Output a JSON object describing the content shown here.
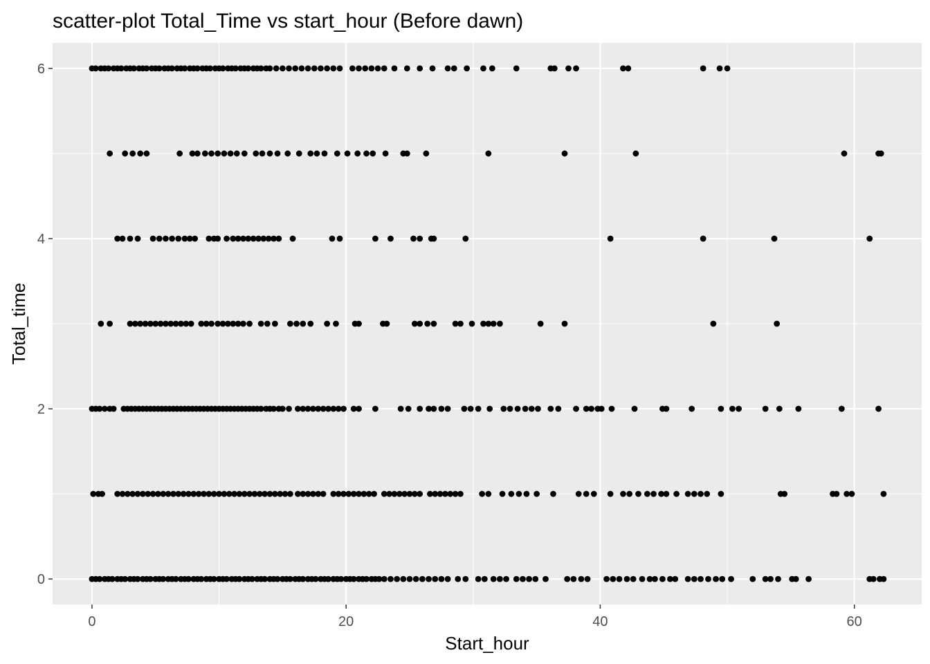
{
  "chart_data": {
    "type": "scatter",
    "title": "scatter-plot Total_Time vs start_hour (Before dawn)",
    "xlabel": "Start_hour",
    "ylabel": "Total_time",
    "xlim": [
      -3.1,
      65.3
    ],
    "ylim": [
      -0.3,
      6.3
    ],
    "x_ticks": [
      0,
      20,
      40,
      60
    ],
    "x_tick_labels": [
      "0",
      "20",
      "40",
      "60"
    ],
    "y_ticks": [
      0,
      2,
      4,
      6
    ],
    "y_tick_labels": [
      "0",
      "2",
      "4",
      "6"
    ],
    "grid": true,
    "legend": "none",
    "colors": {
      "panel": "#ebebeb",
      "grid": "#ffffff",
      "point": "#000000",
      "tick": "#333333"
    },
    "series": [
      {
        "values": [
          {
            "y": 6,
            "x": [
              0.0,
              0.3,
              0.7,
              1.0,
              1.3,
              1.7,
              2.0,
              2.3,
              2.7,
              3.0,
              3.3,
              3.7,
              4.0,
              4.3,
              4.7,
              5.0,
              5.3,
              5.7,
              6.0,
              6.3,
              6.7,
              7.0,
              7.3,
              7.7,
              8.0,
              8.3,
              8.7,
              9.0,
              9.3,
              9.7,
              10.0,
              10.3,
              10.7,
              11.0,
              11.3,
              11.7,
              12.0,
              12.3,
              12.7,
              13.0,
              13.3,
              13.7,
              14.0,
              14.5,
              15.0,
              15.5,
              16.0,
              16.5,
              17.0,
              17.5,
              18.0,
              18.5,
              19.0,
              19.5,
              20.5,
              21.0,
              21.5,
              22.0,
              22.5,
              23.0,
              23.8,
              24.8,
              25.8,
              26.8,
              28.0,
              28.5,
              29.5,
              30.8,
              31.5,
              33.4,
              36.1,
              36.4,
              37.5,
              38.1,
              41.8,
              42.2,
              48.1,
              49.4,
              50.0
            ]
          },
          {
            "y": 5,
            "x": [
              1.4,
              2.6,
              3.2,
              3.8,
              4.3,
              6.9,
              7.9,
              8.3,
              8.9,
              9.4,
              9.9,
              10.4,
              10.9,
              11.4,
              12.0,
              12.9,
              13.4,
              14.0,
              14.6,
              15.4,
              16.3,
              17.2,
              17.7,
              18.3,
              19.3,
              20.1,
              20.9,
              21.6,
              22.1,
              23.1,
              24.5,
              24.8,
              26.3,
              31.2,
              37.2,
              42.8,
              59.2,
              61.9,
              62.1
            ]
          },
          {
            "y": 4,
            "x": [
              2.0,
              2.4,
              3.0,
              3.6,
              4.8,
              5.3,
              5.8,
              6.3,
              6.8,
              7.3,
              7.7,
              8.1,
              9.2,
              9.6,
              9.9,
              10.6,
              11.1,
              11.5,
              11.9,
              12.3,
              12.7,
              13.1,
              13.5,
              13.9,
              14.3,
              14.7,
              15.8,
              18.9,
              19.5,
              22.3,
              23.5,
              25.3,
              25.8,
              26.7,
              26.9,
              29.4,
              40.8,
              48.1,
              53.7,
              61.2
            ]
          },
          {
            "y": 3,
            "x": [
              0.7,
              1.4,
              3.0,
              3.4,
              3.8,
              4.2,
              4.6,
              5.0,
              5.4,
              5.8,
              6.2,
              6.6,
              7.0,
              7.4,
              7.8,
              8.6,
              9.0,
              9.4,
              9.9,
              10.3,
              10.7,
              11.1,
              11.5,
              11.9,
              12.4,
              13.3,
              13.8,
              14.4,
              15.6,
              16.1,
              16.6,
              17.2,
              18.5,
              19.2,
              20.7,
              21.0,
              22.9,
              23.2,
              25.4,
              25.8,
              26.4,
              26.9,
              28.6,
              29.0,
              29.9,
              30.8,
              31.2,
              31.6,
              32.1,
              35.3,
              37.2,
              48.9,
              53.9
            ]
          },
          {
            "y": 2,
            "x": [
              0.0,
              0.3,
              0.6,
              1.0,
              1.4,
              1.7,
              2.5,
              2.8,
              3.1,
              3.4,
              3.7,
              4.0,
              4.3,
              4.6,
              4.9,
              5.2,
              5.5,
              5.8,
              6.1,
              6.4,
              6.7,
              7.0,
              7.3,
              7.6,
              7.9,
              8.2,
              8.5,
              8.8,
              9.1,
              9.4,
              9.7,
              10.0,
              10.3,
              10.6,
              10.9,
              11.2,
              11.5,
              11.8,
              12.1,
              12.4,
              12.7,
              13.0,
              13.3,
              13.7,
              14.0,
              14.3,
              14.7,
              15.0,
              15.5,
              16.2,
              16.6,
              17.0,
              17.4,
              17.8,
              18.2,
              18.6,
              19.0,
              19.4,
              19.8,
              20.6,
              21.0,
              22.3,
              24.3,
              24.9,
              25.8,
              26.5,
              26.9,
              27.5,
              28.0,
              29.3,
              29.8,
              30.4,
              31.3,
              32.4,
              32.9,
              33.5,
              34.1,
              34.6,
              35.1,
              36.1,
              36.7,
              38.1,
              38.9,
              39.3,
              39.8,
              40.1,
              40.9,
              42.7,
              44.9,
              45.2,
              47.2,
              49.5,
              50.4,
              50.9,
              53.0,
              54.1,
              55.6,
              59.0,
              61.9
            ]
          },
          {
            "y": 1,
            "x": [
              0.1,
              0.5,
              0.8,
              2.0,
              2.4,
              2.8,
              3.2,
              3.6,
              4.0,
              4.4,
              4.8,
              5.2,
              5.6,
              6.0,
              6.4,
              6.8,
              7.2,
              7.6,
              8.0,
              8.4,
              8.8,
              9.2,
              9.6,
              10.0,
              10.4,
              10.8,
              11.2,
              11.6,
              12.0,
              12.4,
              12.8,
              13.2,
              13.6,
              14.0,
              14.4,
              14.8,
              15.2,
              15.6,
              16.2,
              16.6,
              17.0,
              17.4,
              17.8,
              18.2,
              19.0,
              19.4,
              19.8,
              20.2,
              20.6,
              21.0,
              21.4,
              21.8,
              22.2,
              23.0,
              23.4,
              23.8,
              24.2,
              24.6,
              25.0,
              25.4,
              25.8,
              26.6,
              27.0,
              27.4,
              27.8,
              28.2,
              28.6,
              29.0,
              30.7,
              31.2,
              32.3,
              33.0,
              33.6,
              34.2,
              35.0,
              36.3,
              38.3,
              38.9,
              39.5,
              40.8,
              41.8,
              42.3,
              43.0,
              43.7,
              44.2,
              44.8,
              45.2,
              46.0,
              46.9,
              47.4,
              47.9,
              48.4,
              49.5,
              54.2,
              54.5,
              58.3,
              58.6,
              59.4,
              59.8,
              62.3
            ]
          },
          {
            "y": 0,
            "x": [
              0.0,
              0.3,
              0.6,
              1.0,
              1.3,
              1.6,
              2.0,
              2.3,
              2.6,
              3.0,
              3.3,
              3.6,
              4.0,
              4.3,
              4.6,
              5.0,
              5.3,
              5.6,
              6.0,
              6.3,
              6.6,
              7.0,
              7.3,
              7.6,
              8.0,
              8.3,
              8.6,
              9.0,
              9.3,
              9.6,
              10.0,
              10.3,
              10.6,
              11.0,
              11.3,
              11.6,
              12.0,
              12.3,
              12.6,
              13.0,
              13.3,
              13.6,
              14.0,
              14.3,
              14.6,
              15.0,
              15.3,
              15.6,
              16.0,
              16.3,
              16.6,
              17.0,
              17.3,
              17.6,
              18.0,
              18.3,
              18.6,
              19.0,
              19.3,
              19.6,
              20.0,
              20.3,
              20.6,
              21.0,
              21.3,
              21.6,
              22.0,
              22.3,
              22.6,
              23.0,
              23.5,
              24.0,
              24.5,
              25.0,
              25.5,
              26.0,
              26.5,
              27.0,
              27.5,
              28.0,
              28.8,
              29.4,
              30.4,
              30.9,
              31.6,
              32.1,
              32.6,
              33.4,
              33.9,
              34.4,
              34.9,
              35.7,
              37.4,
              37.9,
              38.5,
              39.0,
              40.5,
              41.0,
              41.5,
              42.1,
              42.6,
              43.3,
              43.9,
              44.3,
              44.9,
              45.5,
              45.9,
              46.9,
              47.4,
              47.9,
              48.5,
              49.1,
              49.6,
              50.3,
              52.0,
              53.0,
              53.4,
              54.0,
              55.1,
              55.4,
              56.4,
              61.2,
              61.5,
              62.0,
              62.3
            ]
          }
        ]
      }
    ]
  }
}
